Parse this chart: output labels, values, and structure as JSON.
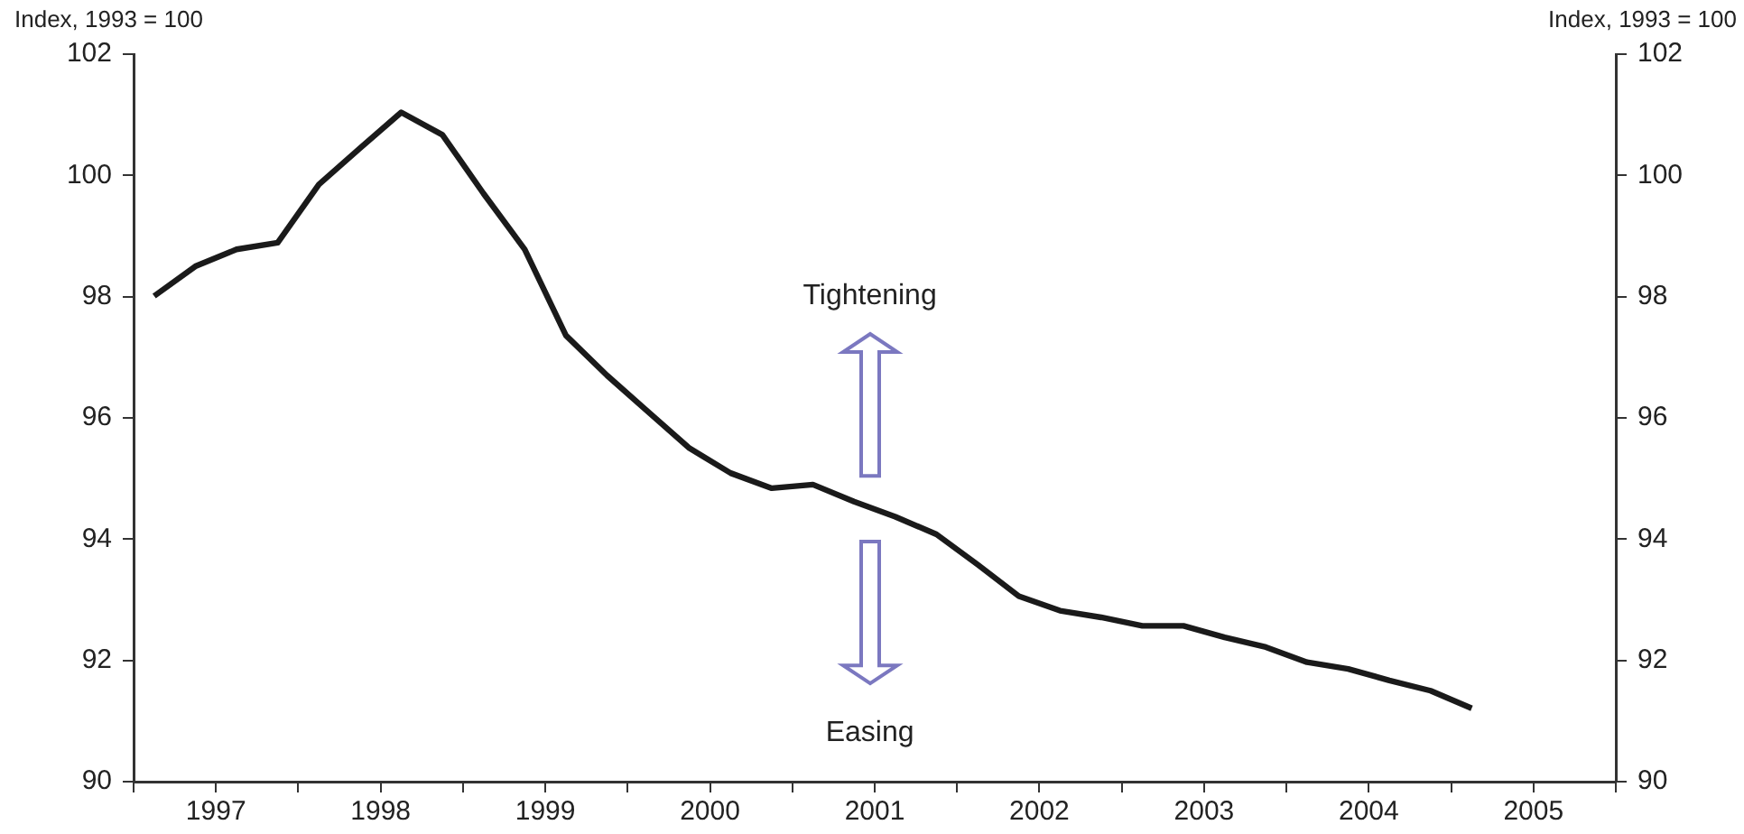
{
  "chart_data": {
    "type": "line",
    "ylabel": "Index, 1993 = 100",
    "y2label": "Index, 1993 = 100",
    "annotations": [
      "Tightening",
      "Easing"
    ],
    "x": [
      1997.125,
      1997.375,
      1997.625,
      1997.875,
      1998.125,
      1998.375,
      1998.625,
      1998.875,
      1999.125,
      1999.375,
      1999.625,
      1999.875,
      2000.125,
      2000.375,
      2000.625,
      2000.875,
      2001.125,
      2001.375,
      2001.625,
      2001.875,
      2002.125,
      2002.375,
      2002.625,
      2002.875,
      2003.125,
      2003.375,
      2003.625,
      2003.875,
      2004.125,
      2004.375,
      2004.625,
      2004.875,
      2005.125
    ],
    "series": [
      {
        "color": "#1a1a1a",
        "values": [
          98.01,
          98.5,
          98.78,
          98.89,
          99.85,
          100.45,
          101.04,
          100.67,
          99.7,
          98.78,
          97.36,
          96.7,
          96.1,
          95.5,
          95.09,
          94.84,
          94.9,
          94.62,
          94.37,
          94.08,
          93.58,
          93.06,
          92.82,
          92.71,
          92.57,
          92.57,
          92.38,
          92.22,
          91.97,
          91.86,
          91.67,
          91.5,
          91.21
        ]
      }
    ],
    "xlim": [
      1997,
      2006
    ],
    "xticks": [
      {
        "value": 1997,
        "label": null
      },
      {
        "value": 1997.5,
        "label": "1997"
      },
      {
        "value": 1998,
        "label": null
      },
      {
        "value": 1998.5,
        "label": "1998"
      },
      {
        "value": 1999,
        "label": null
      },
      {
        "value": 1999.5,
        "label": "1999"
      },
      {
        "value": 2000,
        "label": null
      },
      {
        "value": 2000.5,
        "label": "2000"
      },
      {
        "value": 2001,
        "label": null
      },
      {
        "value": 2001.5,
        "label": "2001"
      },
      {
        "value": 2002,
        "label": null
      },
      {
        "value": 2002.5,
        "label": "2002"
      },
      {
        "value": 2003,
        "label": null
      },
      {
        "value": 2003.5,
        "label": "2003"
      },
      {
        "value": 2004,
        "label": null
      },
      {
        "value": 2004.5,
        "label": "2004"
      },
      {
        "value": 2005,
        "label": null
      },
      {
        "value": 2005.5,
        "label": "2005"
      },
      {
        "value": 2006,
        "label": null
      }
    ],
    "ylim": [
      90,
      102
    ],
    "yticks": [
      90,
      92,
      94,
      96,
      98,
      100,
      102
    ],
    "y2lim": [
      90,
      102
    ],
    "y2ticks": [
      90,
      92,
      94,
      96,
      98,
      100,
      102
    ],
    "marker": "none"
  }
}
